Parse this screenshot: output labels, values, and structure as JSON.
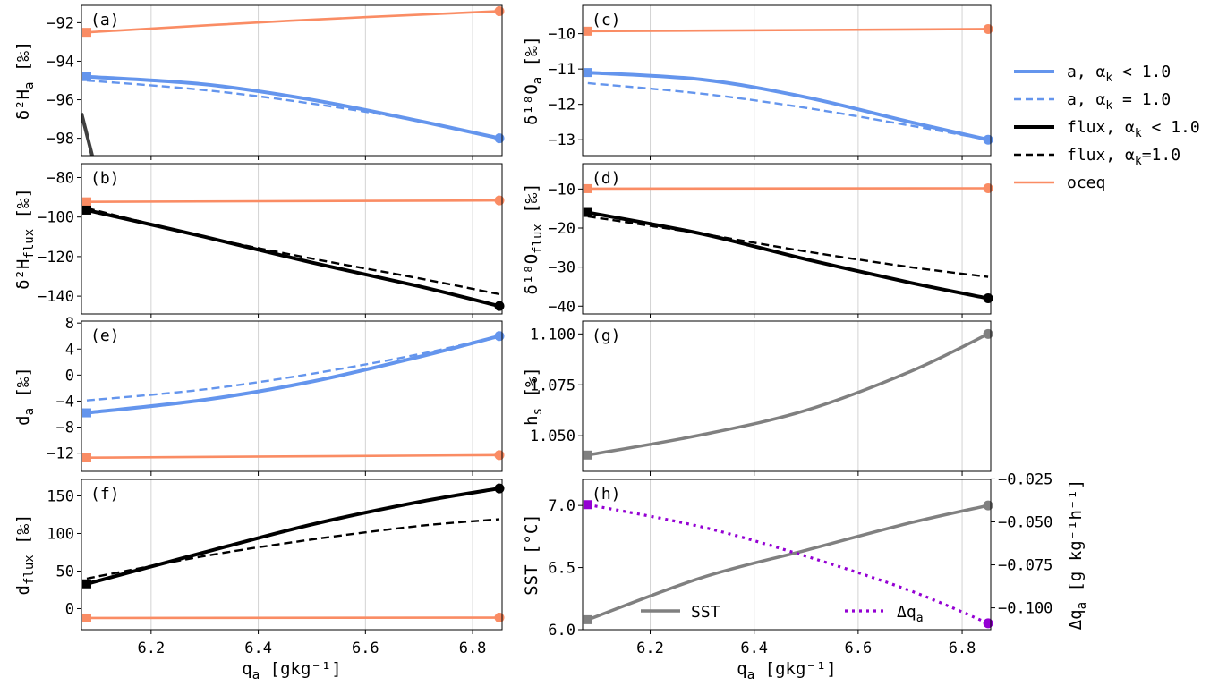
{
  "colors": {
    "a": "#6495ed",
    "flux": "#000000",
    "oceq": "#fa8c64",
    "gray": "#808080",
    "purple": "#9400d3",
    "grid": "#d3d3d3"
  },
  "legend": [
    {
      "label": "a, α_k < 1.0",
      "color": "#6495ed",
      "dash": false,
      "width": 4
    },
    {
      "label": "a, α_k = 1.0",
      "color": "#6495ed",
      "dash": true,
      "width": 2.5
    },
    {
      "label": "flux, α_k < 1.0",
      "color": "#000000",
      "dash": false,
      "width": 4
    },
    {
      "label": "flux, α_k=1.0",
      "color": "#000000",
      "dash": true,
      "width": 2.5
    },
    {
      "label": "oceq",
      "color": "#fa8c64",
      "dash": false,
      "width": 2.5
    }
  ],
  "xaxis": {
    "label": "q_a [gkg⁻¹]",
    "ticks": [
      "6.2",
      "6.4",
      "6.6",
      "6.8"
    ],
    "lim": [
      6.07,
      6.855
    ]
  },
  "chart_data": [
    {
      "panel": "a",
      "type": "line",
      "ylabel": "δ²H_a [‰]",
      "ylim": [
        -98.9,
        -91.1
      ],
      "yticks": [
        "-92",
        "-94",
        "-96",
        "-98"
      ],
      "series": [
        {
          "key": "oceq",
          "x": [
            6.08,
            6.46,
            6.85
          ],
          "y": [
            -92.5,
            -91.9,
            -91.4
          ]
        },
        {
          "key": "a_kin",
          "x": [
            6.08,
            6.3,
            6.5,
            6.7,
            6.85
          ],
          "y": [
            -94.8,
            -95.2,
            -96.0,
            -97.1,
            -98.0
          ]
        },
        {
          "key": "a_eq",
          "x": [
            6.08,
            6.3,
            6.5,
            6.7,
            6.85
          ],
          "y": [
            -95.0,
            -95.5,
            -96.2,
            -97.1,
            -98.0
          ]
        },
        {
          "key": "flux_stub",
          "x": [
            6.07,
            6.09
          ],
          "y": [
            -96.7,
            -98.9
          ]
        }
      ]
    },
    {
      "panel": "c",
      "type": "line",
      "ylabel": "δ¹⁸O_a [‰]",
      "ylim": [
        -13.45,
        -9.2
      ],
      "yticks": [
        "-10",
        "-11",
        "-12",
        "-13"
      ],
      "series": [
        {
          "key": "oceq",
          "x": [
            6.08,
            6.85
          ],
          "y": [
            -9.93,
            -9.87
          ]
        },
        {
          "key": "a_kin",
          "x": [
            6.08,
            6.3,
            6.5,
            6.7,
            6.85
          ],
          "y": [
            -11.1,
            -11.3,
            -11.8,
            -12.5,
            -13.0
          ]
        },
        {
          "key": "a_eq",
          "x": [
            6.08,
            6.3,
            6.5,
            6.7,
            6.85
          ],
          "y": [
            -11.4,
            -11.7,
            -12.1,
            -12.6,
            -13.0
          ]
        }
      ]
    },
    {
      "panel": "b",
      "type": "line",
      "ylabel": "δ²H_flux [‰]",
      "ylim": [
        -149,
        -73
      ],
      "yticks": [
        "-80",
        "-100",
        "-120",
        "-140"
      ],
      "series": [
        {
          "key": "oceq",
          "x": [
            6.08,
            6.85
          ],
          "y": [
            -92.3,
            -91.6
          ]
        },
        {
          "key": "flux_kin",
          "x": [
            6.08,
            6.3,
            6.5,
            6.7,
            6.85
          ],
          "y": [
            -96.5,
            -110.0,
            -123.0,
            -135.0,
            -145.0
          ]
        },
        {
          "key": "flux_eq",
          "x": [
            6.08,
            6.3,
            6.5,
            6.7,
            6.85
          ],
          "y": [
            -95.5,
            -110.0,
            -121.0,
            -131.0,
            -139.0
          ]
        }
      ]
    },
    {
      "panel": "d",
      "type": "line",
      "ylabel": "δ¹⁸O_flux [‰]",
      "ylim": [
        -42,
        -3.5
      ],
      "yticks": [
        "-10",
        "-20",
        "-30",
        "-40"
      ],
      "series": [
        {
          "key": "oceq",
          "x": [
            6.08,
            6.85
          ],
          "y": [
            -9.9,
            -9.8
          ]
        },
        {
          "key": "flux_kin",
          "x": [
            6.08,
            6.3,
            6.5,
            6.7,
            6.85
          ],
          "y": [
            -16.0,
            -21.5,
            -28.0,
            -34.0,
            -38.0
          ]
        },
        {
          "key": "flux_eq",
          "x": [
            6.08,
            6.3,
            6.5,
            6.7,
            6.85
          ],
          "y": [
            -17.0,
            -21.5,
            -26.0,
            -30.0,
            -32.5
          ]
        }
      ]
    },
    {
      "panel": "e",
      "type": "line",
      "ylabel": "d_a [‰]",
      "ylim": [
        -14.8,
        8.3
      ],
      "yticks": [
        "8",
        "4",
        "0",
        "-4",
        "-8",
        "-12"
      ],
      "series": [
        {
          "key": "oceq",
          "x": [
            6.08,
            6.85
          ],
          "y": [
            -12.7,
            -12.3
          ]
        },
        {
          "key": "a_kin",
          "x": [
            6.08,
            6.3,
            6.5,
            6.7,
            6.85
          ],
          "y": [
            -5.8,
            -3.8,
            -1.0,
            2.8,
            6.0
          ]
        },
        {
          "key": "a_eq",
          "x": [
            6.08,
            6.3,
            6.5,
            6.7,
            6.85
          ],
          "y": [
            -3.9,
            -2.2,
            0.2,
            3.2,
            6.0
          ]
        }
      ]
    },
    {
      "panel": "g",
      "type": "line",
      "ylabel": "h_s [%]",
      "ylim": [
        1.0325,
        1.1063
      ],
      "yticks": [
        "1.100",
        "1.075",
        "1.050"
      ],
      "series": [
        {
          "key": "gray",
          "x": [
            6.08,
            6.3,
            6.5,
            6.7,
            6.85
          ],
          "y": [
            1.0405,
            1.0505,
            1.0625,
            1.0815,
            1.1
          ]
        }
      ]
    },
    {
      "panel": "f",
      "type": "line",
      "ylabel": "d_flux [‰]",
      "ylim": [
        -28,
        172
      ],
      "yticks": [
        "150",
        "100",
        "50",
        "0"
      ],
      "series": [
        {
          "key": "oceq",
          "x": [
            6.08,
            6.85
          ],
          "y": [
            -12.5,
            -12.0
          ]
        },
        {
          "key": "flux_kin",
          "x": [
            6.08,
            6.3,
            6.5,
            6.7,
            6.85
          ],
          "y": [
            33,
            75,
            112,
            142,
            160
          ]
        },
        {
          "key": "flux_eq",
          "x": [
            6.08,
            6.3,
            6.5,
            6.7,
            6.85
          ],
          "y": [
            40,
            70,
            92,
            110,
            119
          ]
        }
      ]
    },
    {
      "panel": "h",
      "type": "line",
      "ylabel": "SST [°C]",
      "ylabel2": "Δq_a [g kg⁻¹h⁻¹]",
      "ylim": [
        6.0,
        7.21
      ],
      "ylim2": [
        -0.1127,
        -0.0253
      ],
      "yticks": [
        "7.0",
        "6.5",
        "6.0"
      ],
      "yticks2": [
        "-0.025",
        "-0.050",
        "-0.075",
        "-0.100"
      ],
      "series": [
        {
          "key": "gray",
          "name": "SST",
          "x": [
            6.08,
            6.3,
            6.5,
            6.7,
            6.85
          ],
          "y": [
            6.08,
            6.42,
            6.64,
            6.86,
            7.0
          ]
        },
        {
          "key": "purple",
          "name": "Δq_a",
          "axis": 2,
          "x": [
            6.08,
            6.3,
            6.5,
            6.7,
            6.85
          ],
          "y": [
            -0.04,
            -0.053,
            -0.07,
            -0.09,
            -0.109
          ]
        }
      ]
    }
  ]
}
